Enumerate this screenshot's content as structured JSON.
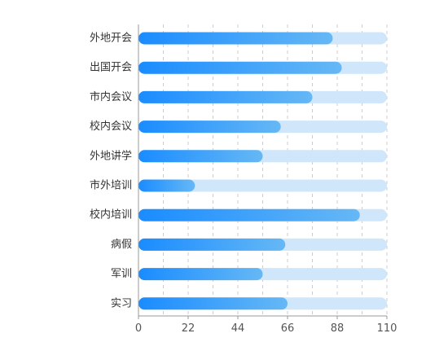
{
  "chart_data": {
    "type": "bar",
    "orientation": "horizontal",
    "categories": [
      "外地开会",
      "出国开会",
      "市内会议",
      "校内会议",
      "外地讲学",
      "市外培训",
      "校内培训",
      "病假",
      "军训",
      "实习"
    ],
    "values": [
      86,
      90,
      77,
      63,
      55,
      25,
      98,
      65,
      55,
      66
    ],
    "background_max": 110,
    "xlim": [
      0,
      110
    ],
    "xticks": [
      0,
      22,
      44,
      66,
      88,
      110
    ],
    "title": "",
    "xlabel": "",
    "ylabel": "",
    "grid": "vertical dashed",
    "legend": "none",
    "colors": {
      "bar_start": "#1a8cff",
      "bar_end": "#66b8f5",
      "bar_background": "#cfe6fb",
      "grid": "#cccccc",
      "axis": "#999999"
    }
  }
}
